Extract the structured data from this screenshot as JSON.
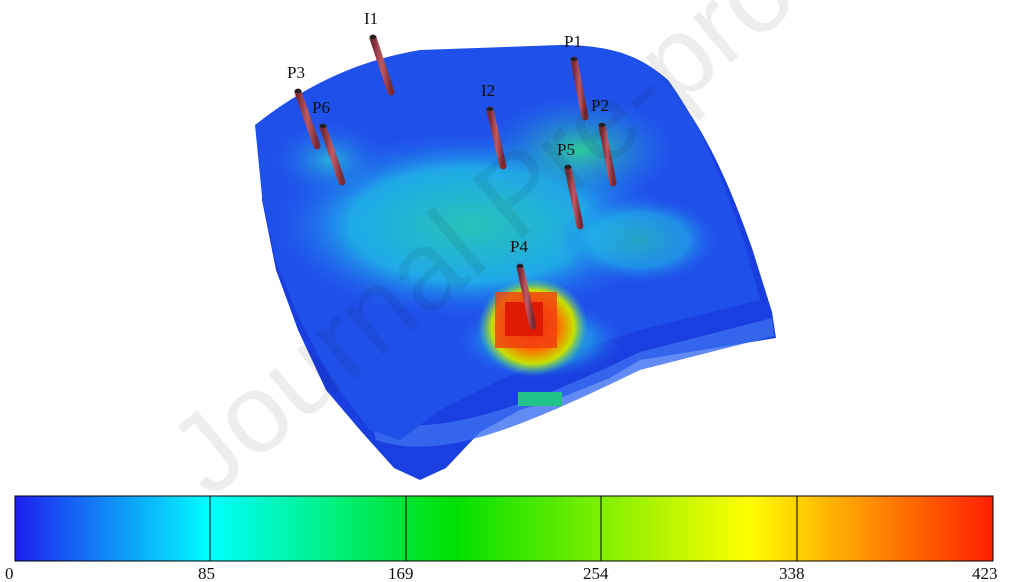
{
  "figure": {
    "wells": [
      {
        "name": "I1",
        "kind": "injector"
      },
      {
        "name": "I2",
        "kind": "injector"
      },
      {
        "name": "P1",
        "kind": "producer"
      },
      {
        "name": "P2",
        "kind": "producer"
      },
      {
        "name": "P3",
        "kind": "producer"
      },
      {
        "name": "P4",
        "kind": "producer"
      },
      {
        "name": "P5",
        "kind": "producer"
      },
      {
        "name": "P6",
        "kind": "producer"
      }
    ],
    "well_color": "#b04a55",
    "colorbar": {
      "min": 0,
      "max": 423,
      "tick_labels": [
        "0",
        "85",
        "169",
        "254",
        "338",
        "423"
      ],
      "colormap": [
        "#1e1ef0",
        "#00ffff",
        "#00e000",
        "#ffff00",
        "#ff1e00"
      ]
    },
    "watermark": "Journal Pre-proof"
  }
}
